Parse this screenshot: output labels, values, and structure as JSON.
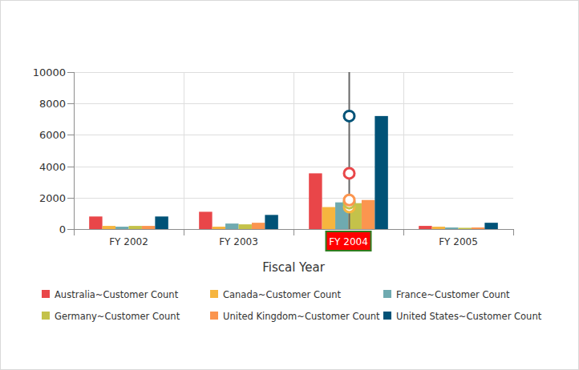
{
  "chart_data": {
    "type": "bar",
    "categories": [
      "FY 2002",
      "FY 2003",
      "FY 2004",
      "FY 2005"
    ],
    "x_label": "Fiscal Year",
    "series": [
      {
        "name": "Australia~Customer Count",
        "color": "#e94649",
        "values": [
          800,
          1100,
          3550,
          200
        ]
      },
      {
        "name": "Canada~Customer Count",
        "color": "#f6b53f",
        "values": [
          200,
          150,
          1400,
          150
        ]
      },
      {
        "name": "France~Customer Count",
        "color": "#6faab0",
        "values": [
          150,
          350,
          1700,
          100
        ]
      },
      {
        "name": "Germany~Customer Count",
        "color": "#c4c24a",
        "values": [
          200,
          300,
          1650,
          80
        ]
      },
      {
        "name": "United Kingdom~Customer Count",
        "color": "#fb954f",
        "values": [
          200,
          400,
          1850,
          100
        ]
      },
      {
        "name": "United States~Customer Count",
        "color": "#005277",
        "values": [
          800,
          900,
          7200,
          400
        ]
      }
    ],
    "ylim": [
      0,
      10000
    ],
    "yticks": [
      0,
      2000,
      4000,
      6000,
      8000,
      10000
    ],
    "grid": true,
    "legend": "bottom"
  }
}
